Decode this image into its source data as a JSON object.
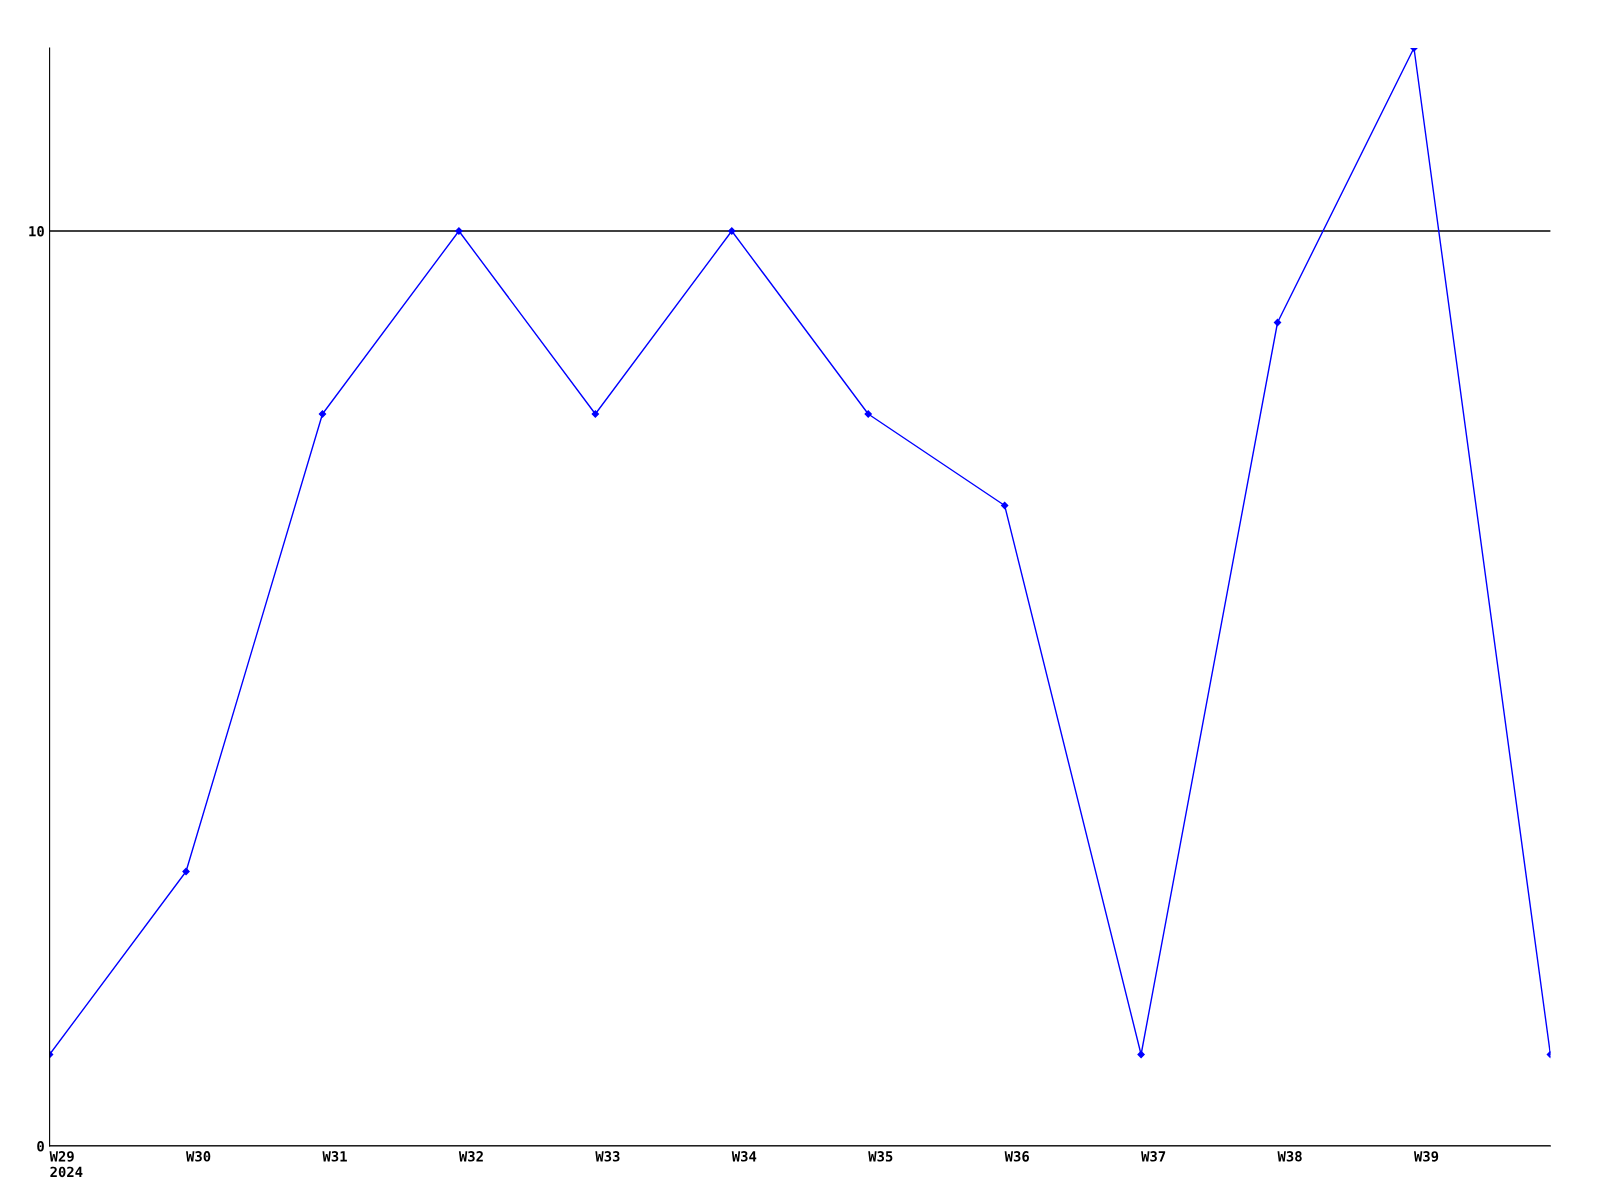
{
  "chart_data": {
    "type": "line",
    "categories": [
      "W29\n2024",
      "W30",
      "W31",
      "W32",
      "W33",
      "W34",
      "W35",
      "W36",
      "W37",
      "W38",
      "W39",
      null
    ],
    "series": [
      {
        "color": "#0000ff",
        "values": [
          1,
          3,
          8,
          10,
          8,
          10,
          8,
          7,
          1,
          9,
          12,
          1
        ]
      }
    ],
    "ylim": [
      0,
      12
    ],
    "yticks": [
      0,
      10
    ],
    "grid": "y",
    "marker": "diamond",
    "line_style": "solid"
  }
}
